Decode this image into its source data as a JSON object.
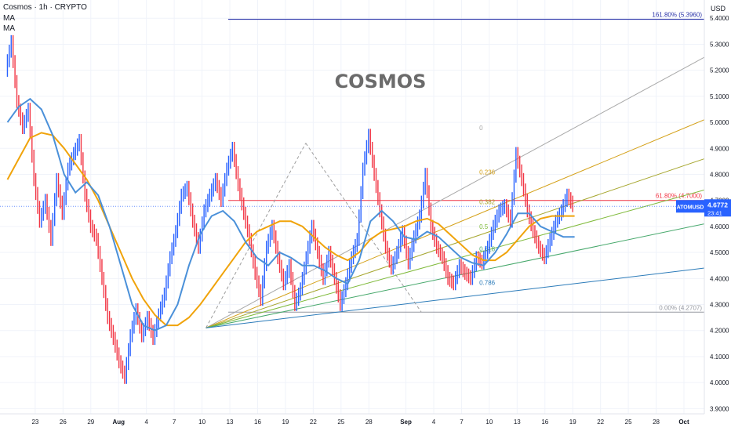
{
  "header": {
    "symbol_line": "Cosmos · 1h · CRYPTO",
    "ma1": "MA",
    "ma2": "MA"
  },
  "chart_data": {
    "type": "line",
    "title": "COSMOS",
    "currency": "USD",
    "ylim": [
      3.88,
      5.47
    ],
    "y_ticks": [
      "5.4000",
      "5.3000",
      "5.2000",
      "5.1000",
      "5.0000",
      "4.9000",
      "4.8000",
      "4.7000",
      "4.6000",
      "4.5000",
      "4.4000",
      "4.3000",
      "4.2000",
      "4.1000",
      "4.0000",
      "3.9000"
    ],
    "y_tick_values": [
      5.4,
      5.3,
      5.2,
      5.1,
      5.0,
      4.9,
      4.8,
      4.7,
      4.6,
      4.5,
      4.4,
      4.3,
      4.2,
      4.1,
      4.0,
      3.9
    ],
    "x_range_days": [
      -0.8,
      47.6
    ],
    "x_ticks": [
      {
        "label": "23",
        "day": 3
      },
      {
        "label": "26",
        "day": 6
      },
      {
        "label": "29",
        "day": 9
      },
      {
        "label": "Aug",
        "day": 12
      },
      {
        "label": "4",
        "day": 15
      },
      {
        "label": "7",
        "day": 18
      },
      {
        "label": "10",
        "day": 21
      },
      {
        "label": "13",
        "day": 24
      },
      {
        "label": "16",
        "day": 27
      },
      {
        "label": "19",
        "day": 30
      },
      {
        "label": "22",
        "day": 33
      },
      {
        "label": "25",
        "day": 36
      },
      {
        "label": "28",
        "day": 39
      },
      {
        "label": "Sep",
        "day": 43
      },
      {
        "label": "4",
        "day": 46
      },
      {
        "label": "7",
        "day": 49
      },
      {
        "label": "10",
        "day": 52
      },
      {
        "label": "13",
        "day": 55
      },
      {
        "label": "16",
        "day": 58
      },
      {
        "label": "19",
        "day": 61
      },
      {
        "label": "22",
        "day": 64
      },
      {
        "label": "25",
        "day": 67
      },
      {
        "label": "28",
        "day": 70
      },
      {
        "label": "Oct",
        "day": 73
      }
    ],
    "price_path": [
      [
        0,
        5.2
      ],
      [
        0.5,
        5.31
      ],
      [
        1,
        5.08
      ],
      [
        1.5,
        4.98
      ],
      [
        2,
        5.05
      ],
      [
        2.5,
        4.78
      ],
      [
        3,
        4.62
      ],
      [
        3.5,
        4.7
      ],
      [
        4,
        4.55
      ],
      [
        4.5,
        4.78
      ],
      [
        5,
        4.65
      ],
      [
        5.5,
        4.82
      ],
      [
        6,
        4.88
      ],
      [
        6.5,
        4.93
      ],
      [
        7,
        4.72
      ],
      [
        7.5,
        4.6
      ],
      [
        8,
        4.55
      ],
      [
        8.5,
        4.4
      ],
      [
        9,
        4.25
      ],
      [
        9.5,
        4.17
      ],
      [
        10,
        4.08
      ],
      [
        10.5,
        4.02
      ],
      [
        11,
        4.18
      ],
      [
        11.5,
        4.28
      ],
      [
        12,
        4.18
      ],
      [
        12.5,
        4.25
      ],
      [
        13,
        4.17
      ],
      [
        13.5,
        4.26
      ],
      [
        14,
        4.34
      ],
      [
        14.5,
        4.48
      ],
      [
        15,
        4.58
      ],
      [
        15.5,
        4.72
      ],
      [
        16,
        4.75
      ],
      [
        16.5,
        4.62
      ],
      [
        17,
        4.52
      ],
      [
        17.5,
        4.66
      ],
      [
        18,
        4.72
      ],
      [
        18.5,
        4.78
      ],
      [
        19,
        4.7
      ],
      [
        19.5,
        4.82
      ],
      [
        20,
        4.9
      ],
      [
        20.5,
        4.76
      ],
      [
        21,
        4.65
      ],
      [
        21.5,
        4.55
      ],
      [
        22,
        4.42
      ],
      [
        22.5,
        4.32
      ],
      [
        23,
        4.52
      ],
      [
        23.5,
        4.6
      ],
      [
        24,
        4.48
      ],
      [
        24.5,
        4.38
      ],
      [
        25,
        4.45
      ],
      [
        25.5,
        4.3
      ],
      [
        26,
        4.36
      ],
      [
        26.5,
        4.48
      ],
      [
        27,
        4.6
      ],
      [
        27.5,
        4.5
      ],
      [
        28,
        4.4
      ],
      [
        28.5,
        4.5
      ],
      [
        29,
        4.4
      ],
      [
        29.5,
        4.3
      ],
      [
        30,
        4.38
      ],
      [
        30.5,
        4.48
      ],
      [
        31,
        4.55
      ],
      [
        31.5,
        4.82
      ],
      [
        32,
        4.95
      ],
      [
        32.5,
        4.8
      ],
      [
        33,
        4.66
      ],
      [
        33.5,
        4.52
      ],
      [
        34,
        4.44
      ],
      [
        34.5,
        4.5
      ],
      [
        35,
        4.58
      ],
      [
        35.5,
        4.46
      ],
      [
        36,
        4.56
      ],
      [
        36.5,
        4.64
      ],
      [
        37,
        4.8
      ],
      [
        37.5,
        4.6
      ],
      [
        38,
        4.52
      ],
      [
        38.5,
        4.48
      ],
      [
        39,
        4.4
      ],
      [
        39.5,
        4.38
      ],
      [
        40,
        4.45
      ],
      [
        40.5,
        4.42
      ],
      [
        41,
        4.4
      ],
      [
        41.5,
        4.48
      ],
      [
        42,
        4.46
      ],
      [
        42.5,
        4.52
      ],
      [
        43,
        4.6
      ],
      [
        43.5,
        4.66
      ],
      [
        44,
        4.68
      ],
      [
        44.5,
        4.62
      ],
      [
        45,
        4.88
      ],
      [
        45.5,
        4.78
      ],
      [
        46,
        4.66
      ],
      [
        46.5,
        4.58
      ],
      [
        47,
        4.52
      ],
      [
        47.5,
        4.48
      ],
      [
        48,
        4.55
      ],
      [
        48.5,
        4.62
      ],
      [
        49,
        4.66
      ],
      [
        49.5,
        4.72
      ],
      [
        50,
        4.68
      ]
    ],
    "last_price": 4.6772,
    "ticker": "ATOMUSD",
    "countdown": "23:41",
    "horizontal_levels": [
      {
        "value": 5.396,
        "label": "161.80% (5.3960)",
        "color": "#2a33a8"
      },
      {
        "value": 4.7,
        "label": "61.80% (4.7000)",
        "color": "#f23645"
      },
      {
        "value": 4.2707,
        "label": "0.00% (4.2707)",
        "color": "#9598a1"
      }
    ],
    "fan_origin": {
      "day": 17.5,
      "value": 4.21
    },
    "fan_lines": [
      {
        "label": "0",
        "end_value": 5.25,
        "color": "#a8a8a8"
      },
      {
        "label": "0.236",
        "end_value": 5.01,
        "color": "#d4a017"
      },
      {
        "label": "0.382",
        "end_value": 4.86,
        "color": "#a6a62e"
      },
      {
        "label": "0.5",
        "end_value": 4.74,
        "color": "#7fba3a"
      },
      {
        "label": "0.618",
        "end_value": 4.61,
        "color": "#46a86b"
      },
      {
        "label": "0.786",
        "end_value": 4.44,
        "color": "#2b7bb9"
      }
    ],
    "fan_label_positions": [
      {
        "label": "0",
        "day": 41.6,
        "value": 4.97
      },
      {
        "label": "0.236",
        "day": 41.6,
        "value": 4.8
      },
      {
        "label": "0.382",
        "day": 41.6,
        "value": 4.685
      },
      {
        "label": "0.5",
        "day": 41.6,
        "value": 4.59
      },
      {
        "label": "0.618",
        "day": 41.6,
        "value": 4.505
      },
      {
        "label": "0.786",
        "day": 41.6,
        "value": 4.375
      }
    ],
    "trend_lines": [
      {
        "from": [
          17.5,
          4.21
        ],
        "to": [
          26.3,
          4.92
        ],
        "style": "dashed",
        "color": "#9e9e9e"
      },
      {
        "from": [
          26.3,
          4.92
        ],
        "to": [
          36.5,
          4.27
        ],
        "style": "dashed",
        "color": "#9e9e9e"
      }
    ],
    "ma_slow": [
      [
        0,
        4.78
      ],
      [
        1,
        4.86
      ],
      [
        2,
        4.94
      ],
      [
        3,
        4.96
      ],
      [
        4,
        4.95
      ],
      [
        5,
        4.9
      ],
      [
        6,
        4.84
      ],
      [
        7,
        4.78
      ],
      [
        8,
        4.7
      ],
      [
        9,
        4.6
      ],
      [
        10,
        4.5
      ],
      [
        11,
        4.4
      ],
      [
        12,
        4.32
      ],
      [
        13,
        4.26
      ],
      [
        14,
        4.22
      ],
      [
        15,
        4.22
      ],
      [
        16,
        4.25
      ],
      [
        17,
        4.3
      ],
      [
        18,
        4.36
      ],
      [
        19,
        4.42
      ],
      [
        20,
        4.48
      ],
      [
        21,
        4.54
      ],
      [
        22,
        4.58
      ],
      [
        23,
        4.6
      ],
      [
        24,
        4.62
      ],
      [
        25,
        4.62
      ],
      [
        26,
        4.6
      ],
      [
        27,
        4.56
      ],
      [
        28,
        4.52
      ],
      [
        29,
        4.49
      ],
      [
        30,
        4.47
      ],
      [
        31,
        4.5
      ],
      [
        32,
        4.55
      ],
      [
        33,
        4.58
      ],
      [
        34,
        4.59
      ],
      [
        35,
        4.6
      ],
      [
        36,
        4.62
      ],
      [
        37,
        4.63
      ],
      [
        38,
        4.61
      ],
      [
        39,
        4.57
      ],
      [
        40,
        4.53
      ],
      [
        41,
        4.49
      ],
      [
        42,
        4.47
      ],
      [
        43,
        4.47
      ],
      [
        44,
        4.5
      ],
      [
        45,
        4.55
      ],
      [
        46,
        4.6
      ],
      [
        47,
        4.63
      ],
      [
        48,
        4.64
      ],
      [
        49,
        4.64
      ],
      [
        50,
        4.64
      ]
    ],
    "ma_fast": [
      [
        0,
        5.0
      ],
      [
        1,
        5.06
      ],
      [
        2,
        5.09
      ],
      [
        3,
        5.05
      ],
      [
        4,
        4.95
      ],
      [
        5,
        4.8
      ],
      [
        6,
        4.73
      ],
      [
        7,
        4.77
      ],
      [
        8,
        4.72
      ],
      [
        9,
        4.6
      ],
      [
        10,
        4.45
      ],
      [
        11,
        4.3
      ],
      [
        12,
        4.22
      ],
      [
        13,
        4.2
      ],
      [
        14,
        4.22
      ],
      [
        15,
        4.3
      ],
      [
        16,
        4.45
      ],
      [
        17,
        4.57
      ],
      [
        18,
        4.64
      ],
      [
        19,
        4.66
      ],
      [
        20,
        4.62
      ],
      [
        21,
        4.54
      ],
      [
        22,
        4.48
      ],
      [
        23,
        4.45
      ],
      [
        24,
        4.5
      ],
      [
        25,
        4.48
      ],
      [
        26,
        4.45
      ],
      [
        27,
        4.45
      ],
      [
        28,
        4.43
      ],
      [
        29,
        4.4
      ],
      [
        30,
        4.38
      ],
      [
        31,
        4.47
      ],
      [
        32,
        4.62
      ],
      [
        33,
        4.66
      ],
      [
        34,
        4.62
      ],
      [
        35,
        4.56
      ],
      [
        36,
        4.55
      ],
      [
        37,
        4.58
      ],
      [
        38,
        4.56
      ],
      [
        39,
        4.52
      ],
      [
        40,
        4.48
      ],
      [
        41,
        4.46
      ],
      [
        42,
        4.45
      ],
      [
        43,
        4.5
      ],
      [
        44,
        4.57
      ],
      [
        45,
        4.65
      ],
      [
        46,
        4.65
      ],
      [
        47,
        4.6
      ],
      [
        48,
        4.58
      ],
      [
        49,
        4.56
      ],
      [
        50,
        4.56
      ]
    ],
    "grid": true,
    "legend": "none"
  }
}
